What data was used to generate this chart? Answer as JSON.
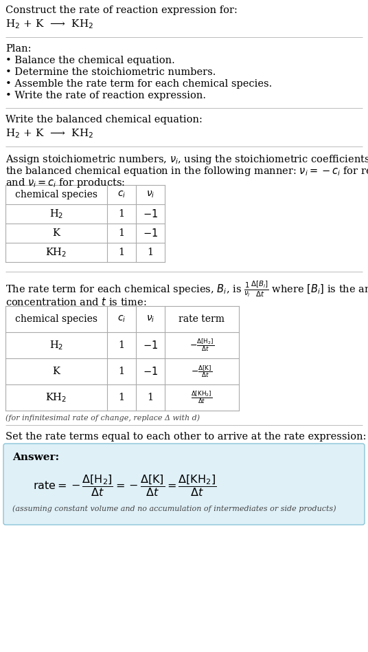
{
  "bg_color": "#ffffff",
  "text_color": "#000000",
  "separator_color": "#bbbbbb",
  "table_border_color": "#aaaaaa",
  "answer_bg": "#dff0f7",
  "answer_border": "#89c4d8",
  "body_fontsize": 10.5,
  "small_fontsize": 8.0,
  "sections": {
    "s1_title": "Construct the rate of reaction expression for:",
    "s1_eq": "H$_2$ + K  ⟶  KH$_2$",
    "s2_plan_header": "Plan:",
    "s2_plan_items": [
      "• Balance the chemical equation.",
      "• Determine the stoichiometric numbers.",
      "• Assemble the rate term for each chemical species.",
      "• Write the rate of reaction expression."
    ],
    "s3_header": "Write the balanced chemical equation:",
    "s3_eq": "H$_2$ + K  ⟶  KH$_2$",
    "s4_intro_line1": "Assign stoichiometric numbers, $\\nu_i$, using the stoichiometric coefficients, $c_i$, from",
    "s4_intro_line2": "the balanced chemical equation in the following manner: $\\nu_i = -c_i$ for reactants",
    "s4_intro_line3": "and $\\nu_i = c_i$ for products:",
    "s4_table_headers": [
      "chemical species",
      "$c_i$",
      "$\\nu_i$"
    ],
    "s4_table_rows": [
      [
        "H$_2$",
        "1",
        "$-1$"
      ],
      [
        "K",
        "1",
        "$-1$"
      ],
      [
        "KH$_2$",
        "1",
        "1"
      ]
    ],
    "s5_line1": "The rate term for each chemical species, $B_i$, is $\\frac{1}{\\nu_i}\\frac{\\Delta[B_i]}{\\Delta t}$ where $[B_i]$ is the amount",
    "s5_line2": "concentration and $t$ is time:",
    "s5_table_headers": [
      "chemical species",
      "$c_i$",
      "$\\nu_i$",
      "rate term"
    ],
    "s5_table_rows": [
      [
        "H$_2$",
        "1",
        "$-1$",
        "$-\\frac{\\Delta[\\mathrm{H_2}]}{\\Delta t}$"
      ],
      [
        "K",
        "1",
        "$-1$",
        "$-\\frac{\\Delta[\\mathrm{K}]}{\\Delta t}$"
      ],
      [
        "KH$_2$",
        "1",
        "1",
        "$\\frac{\\Delta[\\mathrm{KH_2}]}{\\Delta t}$"
      ]
    ],
    "s5_note": "(for infinitesimal rate of change, replace Δ with d)",
    "s6_intro": "Set the rate terms equal to each other to arrive at the rate expression:",
    "s6_answer_label": "Answer:",
    "s6_rate_eq": "$\\mathrm{rate} = -\\dfrac{\\Delta[\\mathrm{H_2}]}{\\Delta t} = -\\dfrac{\\Delta[\\mathrm{K}]}{\\Delta t} = \\dfrac{\\Delta[\\mathrm{KH_2}]}{\\Delta t}$",
    "s6_note": "(assuming constant volume and no accumulation of intermediates or side products)"
  }
}
